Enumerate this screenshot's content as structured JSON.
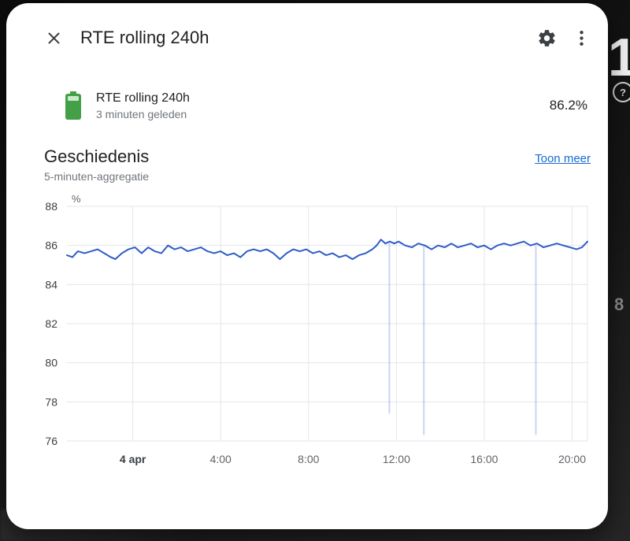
{
  "dialog": {
    "title": "RTE rolling 240h",
    "entity": {
      "name": "RTE rolling 240h",
      "last_changed": "3 minuten geleden",
      "state": "86.2%"
    },
    "history": {
      "heading": "Geschiedenis",
      "show_more": "Toon meer",
      "subtitle": "5-minuten-aggregatie"
    }
  },
  "background": {
    "glimpse_number": "1",
    "glimpse_eight": "8"
  },
  "theme": {
    "series_blue": "#2e5cc8",
    "link_blue": "#176bd2",
    "battery_green": "#43a047",
    "battery_fill_light": "#cde9cd",
    "grid": "#e3e6ea",
    "backdrop": "#141414"
  },
  "chart_data": {
    "type": "line",
    "title": "Geschiedenis",
    "ylabel": "%",
    "ylim": [
      76,
      88
    ],
    "yticks": [
      76,
      78,
      80,
      82,
      84,
      86,
      88
    ],
    "xlim": [
      0,
      23.7
    ],
    "grid": true,
    "legend": false,
    "xticks": [
      {
        "t": 3,
        "label": "4 apr",
        "bold": true
      },
      {
        "t": 7,
        "label": "4:00"
      },
      {
        "t": 11,
        "label": "8:00"
      },
      {
        "t": 15,
        "label": "12:00"
      },
      {
        "t": 19,
        "label": "16:00"
      },
      {
        "t": 23,
        "label": "20:00"
      }
    ],
    "series": [
      {
        "name": "RTE rolling 240h",
        "color": "#2e5cc8",
        "points": [
          [
            0,
            85.5
          ],
          [
            0.25,
            85.4
          ],
          [
            0.5,
            85.7
          ],
          [
            0.8,
            85.6
          ],
          [
            1.1,
            85.7
          ],
          [
            1.4,
            85.8
          ],
          [
            1.7,
            85.6
          ],
          [
            2.0,
            85.4
          ],
          [
            2.2,
            85.3
          ],
          [
            2.5,
            85.6
          ],
          [
            2.8,
            85.8
          ],
          [
            3.1,
            85.9
          ],
          [
            3.4,
            85.6
          ],
          [
            3.7,
            85.9
          ],
          [
            4.0,
            85.7
          ],
          [
            4.3,
            85.6
          ],
          [
            4.6,
            86.0
          ],
          [
            4.9,
            85.8
          ],
          [
            5.2,
            85.9
          ],
          [
            5.5,
            85.7
          ],
          [
            5.8,
            85.8
          ],
          [
            6.1,
            85.9
          ],
          [
            6.4,
            85.7
          ],
          [
            6.7,
            85.6
          ],
          [
            7.0,
            85.7
          ],
          [
            7.3,
            85.5
          ],
          [
            7.6,
            85.6
          ],
          [
            7.9,
            85.4
          ],
          [
            8.2,
            85.7
          ],
          [
            8.5,
            85.8
          ],
          [
            8.8,
            85.7
          ],
          [
            9.1,
            85.8
          ],
          [
            9.4,
            85.6
          ],
          [
            9.7,
            85.3
          ],
          [
            10.0,
            85.6
          ],
          [
            10.3,
            85.8
          ],
          [
            10.6,
            85.7
          ],
          [
            10.9,
            85.8
          ],
          [
            11.2,
            85.6
          ],
          [
            11.5,
            85.7
          ],
          [
            11.8,
            85.5
          ],
          [
            12.1,
            85.6
          ],
          [
            12.4,
            85.4
          ],
          [
            12.7,
            85.5
          ],
          [
            13.0,
            85.3
          ],
          [
            13.3,
            85.5
          ],
          [
            13.6,
            85.6
          ],
          [
            13.9,
            85.8
          ],
          [
            14.1,
            86.0
          ],
          [
            14.3,
            86.3
          ],
          [
            14.5,
            86.1
          ],
          [
            14.7,
            86.2
          ],
          [
            14.9,
            86.1
          ],
          [
            15.1,
            86.2
          ],
          [
            15.4,
            86.0
          ],
          [
            15.7,
            85.9
          ],
          [
            16.0,
            86.1
          ],
          [
            16.3,
            86.0
          ],
          [
            16.6,
            85.8
          ],
          [
            16.9,
            86.0
          ],
          [
            17.2,
            85.9
          ],
          [
            17.5,
            86.1
          ],
          [
            17.8,
            85.9
          ],
          [
            18.1,
            86.0
          ],
          [
            18.4,
            86.1
          ],
          [
            18.7,
            85.9
          ],
          [
            19.0,
            86.0
          ],
          [
            19.3,
            85.8
          ],
          [
            19.6,
            86.0
          ],
          [
            19.9,
            86.1
          ],
          [
            20.2,
            86.0
          ],
          [
            20.5,
            86.1
          ],
          [
            20.8,
            86.2
          ],
          [
            21.1,
            86.0
          ],
          [
            21.4,
            86.1
          ],
          [
            21.7,
            85.9
          ],
          [
            22.0,
            86.0
          ],
          [
            22.3,
            86.1
          ],
          [
            22.6,
            86.0
          ],
          [
            22.9,
            85.9
          ],
          [
            23.2,
            85.8
          ],
          [
            23.45,
            85.9
          ],
          [
            23.7,
            86.2
          ]
        ]
      }
    ],
    "drops": [
      {
        "t": 14.68,
        "from": 86.1,
        "to": 77.4
      },
      {
        "t": 16.25,
        "from": 86.0,
        "to": 76.3
      },
      {
        "t": 21.35,
        "from": 86.0,
        "to": 76.3
      }
    ]
  }
}
